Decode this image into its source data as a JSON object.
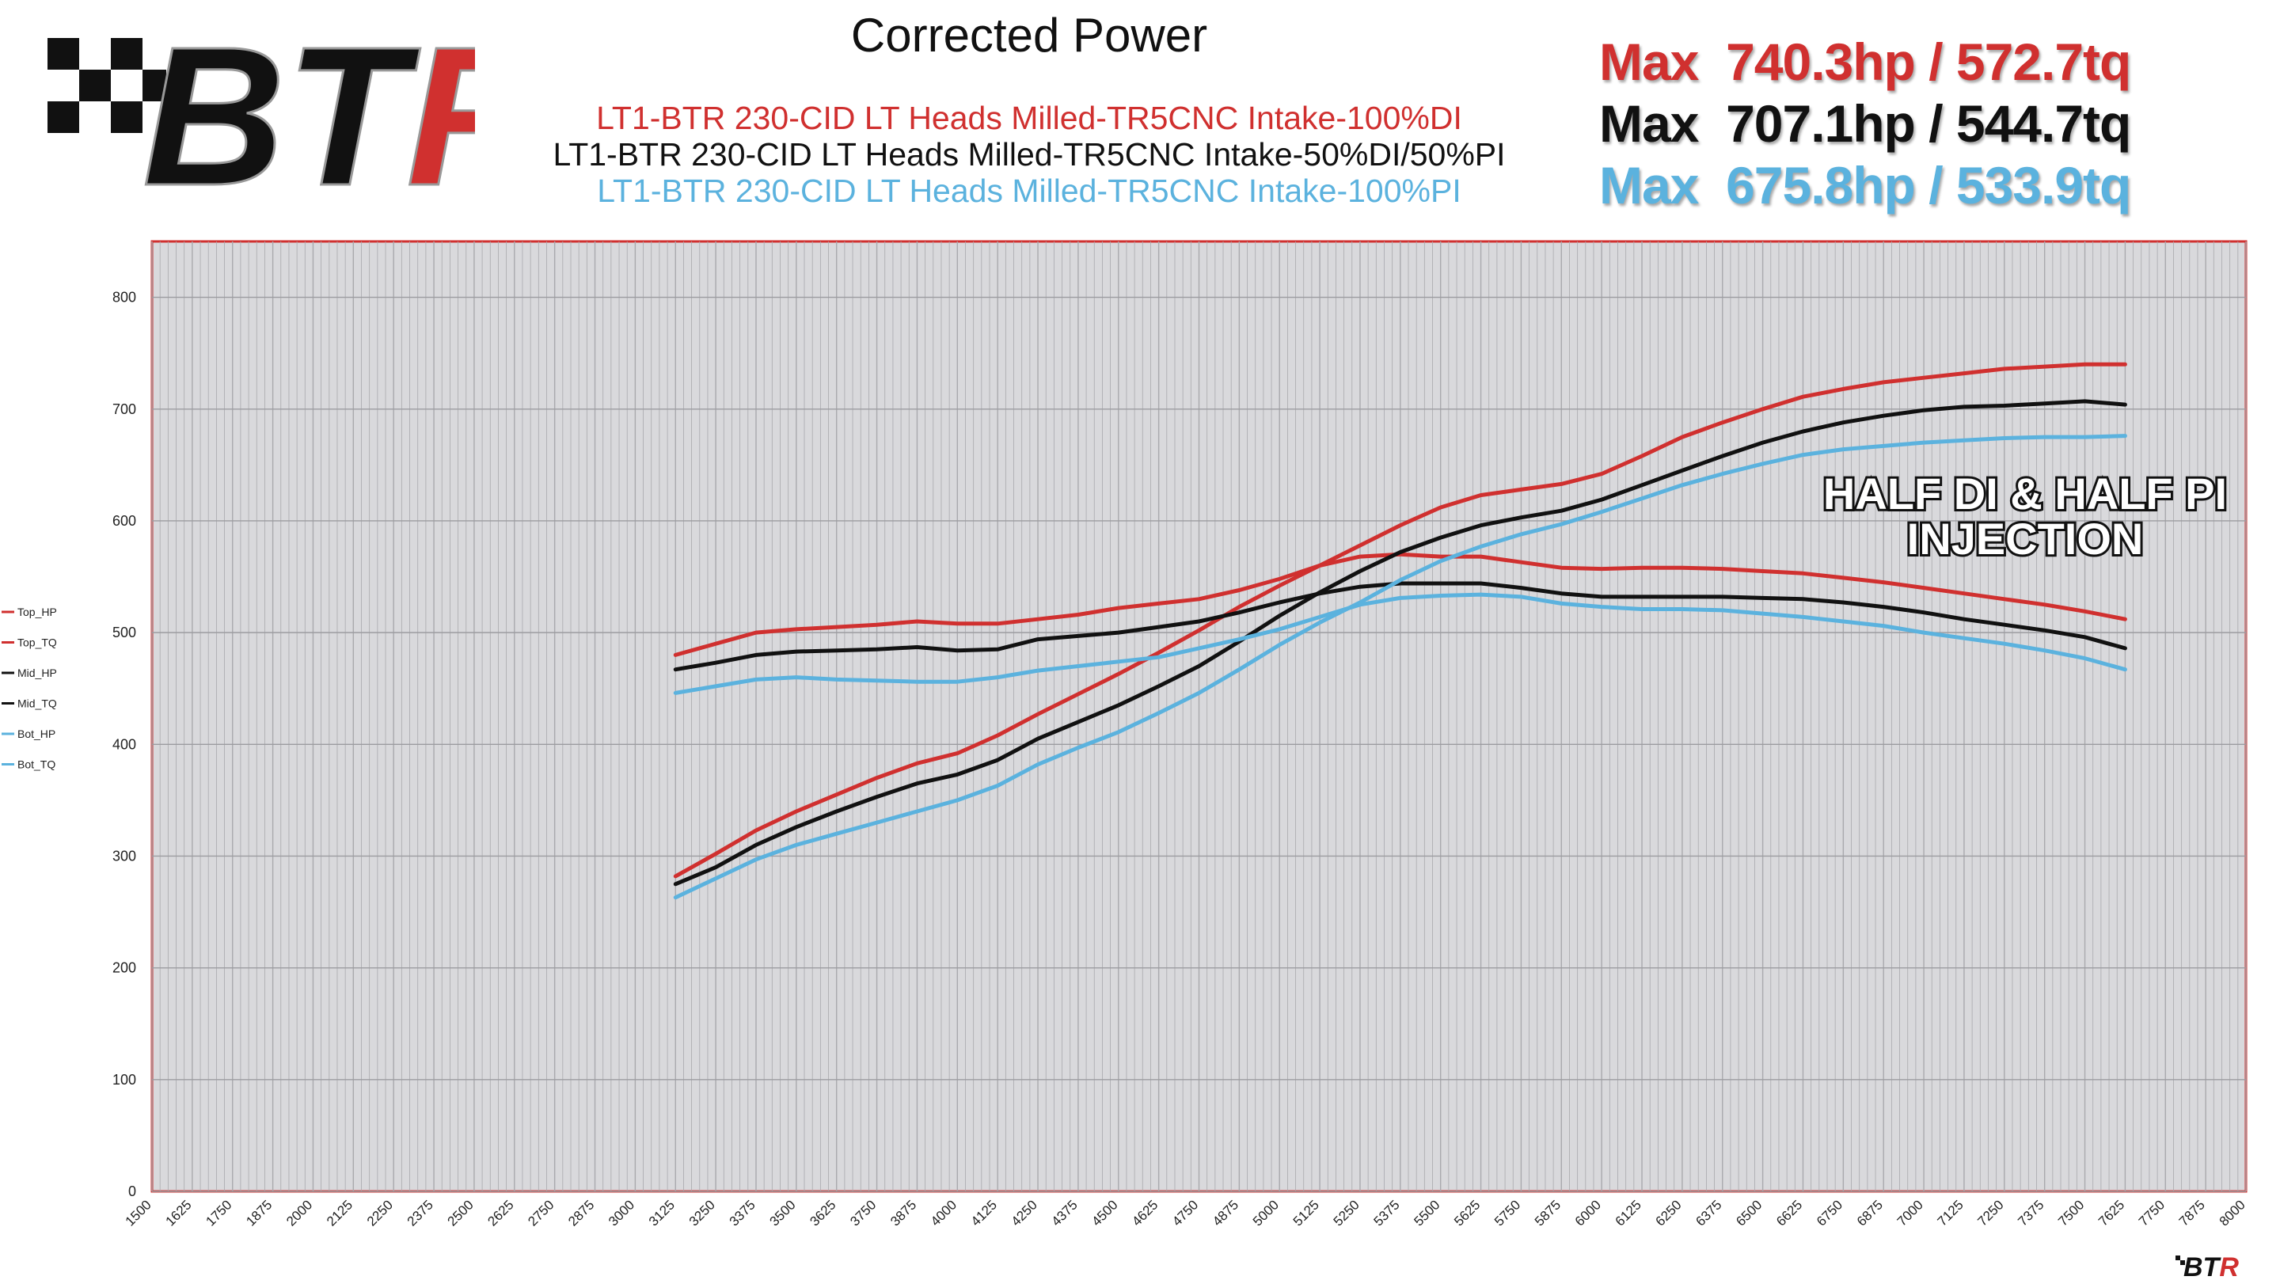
{
  "header": {
    "logo_text": "BTR",
    "title": "Corrected Power",
    "subtitles": [
      {
        "text": "LT1-BTR 230-CID LT Heads Milled-TR5CNC Intake-100%DI",
        "color": "#d0302f"
      },
      {
        "text": "LT1-BTR 230-CID LT Heads Milled-TR5CNC Intake-50%DI/50%PI",
        "color": "#111111"
      },
      {
        "text": "LT1-BTR 230-CID LT Heads Milled-TR5CNC Intake-100%PI",
        "color": "#5bb2de"
      }
    ],
    "max_lines": [
      {
        "label": "Max",
        "value": "740.3hp / 572.7tq",
        "color": "#d0302f"
      },
      {
        "label": "Max",
        "value": "707.1hp / 544.7tq",
        "color": "#111111"
      },
      {
        "label": "Max",
        "value": "675.8hp / 533.9tq",
        "color": "#5bb2de"
      }
    ]
  },
  "annotation": {
    "line1": "HALF DI & HALF PI",
    "line2": "INJECTION"
  },
  "colors": {
    "top": "#d0302f",
    "mid": "#111111",
    "bot": "#5bb2de",
    "plot_bg": "#d9d9dc",
    "frame": "#d0302f"
  },
  "chart_data": {
    "type": "line",
    "title": "Corrected Power",
    "xlim": [
      1500,
      8000
    ],
    "ylim": [
      0,
      850
    ],
    "x_ticks": [
      1500,
      1625,
      1750,
      1875,
      2000,
      2125,
      2250,
      2375,
      2500,
      2625,
      2750,
      2875,
      3000,
      3125,
      3250,
      3375,
      3500,
      3625,
      3750,
      3875,
      4000,
      4125,
      4250,
      4375,
      4500,
      4625,
      4750,
      4875,
      5000,
      5125,
      5250,
      5375,
      5500,
      5625,
      5750,
      5875,
      6000,
      6125,
      6250,
      6375,
      6500,
      6625,
      6750,
      6875,
      7000,
      7125,
      7250,
      7375,
      7500,
      7625,
      7750,
      7875,
      8000
    ],
    "y_ticks": [
      0,
      100,
      200,
      300,
      400,
      500,
      600,
      700,
      800
    ],
    "grid": true,
    "legend_position": "left",
    "x": [
      3125,
      3250,
      3375,
      3500,
      3625,
      3750,
      3875,
      4000,
      4125,
      4250,
      4375,
      4500,
      4625,
      4750,
      4875,
      5000,
      5125,
      5250,
      5375,
      5500,
      5625,
      5750,
      5875,
      6000,
      6125,
      6250,
      6375,
      6500,
      6625,
      6750,
      6875,
      7000,
      7125,
      7250,
      7375,
      7500,
      7625
    ],
    "series": [
      {
        "name": "Top_HP",
        "color": "#d0302f",
        "values": [
          282,
          302,
          323,
          340,
          355,
          370,
          383,
          392,
          408,
          427,
          445,
          463,
          482,
          502,
          523,
          542,
          560,
          578,
          596,
          612,
          623,
          628,
          633,
          642,
          658,
          675,
          688,
          700,
          711,
          718,
          724,
          728,
          732,
          736,
          738,
          740,
          740
        ]
      },
      {
        "name": "Top_TQ",
        "color": "#d0302f",
        "values": [
          480,
          490,
          500,
          503,
          505,
          507,
          510,
          508,
          508,
          512,
          516,
          522,
          526,
          530,
          538,
          548,
          560,
          568,
          570,
          568,
          568,
          563,
          558,
          557,
          558,
          558,
          557,
          555,
          553,
          549,
          545,
          540,
          535,
          530,
          525,
          519,
          512
        ]
      },
      {
        "name": "Mid_HP",
        "color": "#111111",
        "values": [
          275,
          290,
          310,
          326,
          340,
          353,
          365,
          373,
          386,
          405,
          420,
          435,
          452,
          470,
          492,
          515,
          536,
          555,
          572,
          585,
          596,
          603,
          609,
          619,
          632,
          645,
          658,
          670,
          680,
          688,
          694,
          699,
          702,
          703,
          705,
          707,
          704
        ]
      },
      {
        "name": "Mid_TQ",
        "color": "#111111",
        "values": [
          467,
          473,
          480,
          483,
          484,
          485,
          487,
          484,
          485,
          494,
          497,
          500,
          505,
          510,
          518,
          527,
          535,
          541,
          544,
          544,
          544,
          540,
          535,
          532,
          532,
          532,
          532,
          531,
          530,
          527,
          523,
          518,
          512,
          507,
          502,
          496,
          486
        ]
      },
      {
        "name": "Bot_HP",
        "color": "#5bb2de",
        "values": [
          263,
          280,
          297,
          310,
          320,
          330,
          340,
          350,
          363,
          382,
          397,
          411,
          428,
          446,
          467,
          489,
          509,
          527,
          547,
          564,
          577,
          588,
          597,
          608,
          620,
          632,
          642,
          651,
          659,
          664,
          667,
          670,
          672,
          674,
          675,
          675,
          676
        ]
      },
      {
        "name": "Bot_TQ",
        "color": "#5bb2de",
        "values": [
          446,
          452,
          458,
          460,
          458,
          457,
          456,
          456,
          460,
          466,
          470,
          474,
          478,
          486,
          494,
          503,
          514,
          525,
          531,
          533,
          534,
          532,
          526,
          523,
          521,
          521,
          520,
          517,
          514,
          510,
          506,
          500,
          495,
          490,
          484,
          477,
          467
        ]
      }
    ]
  }
}
